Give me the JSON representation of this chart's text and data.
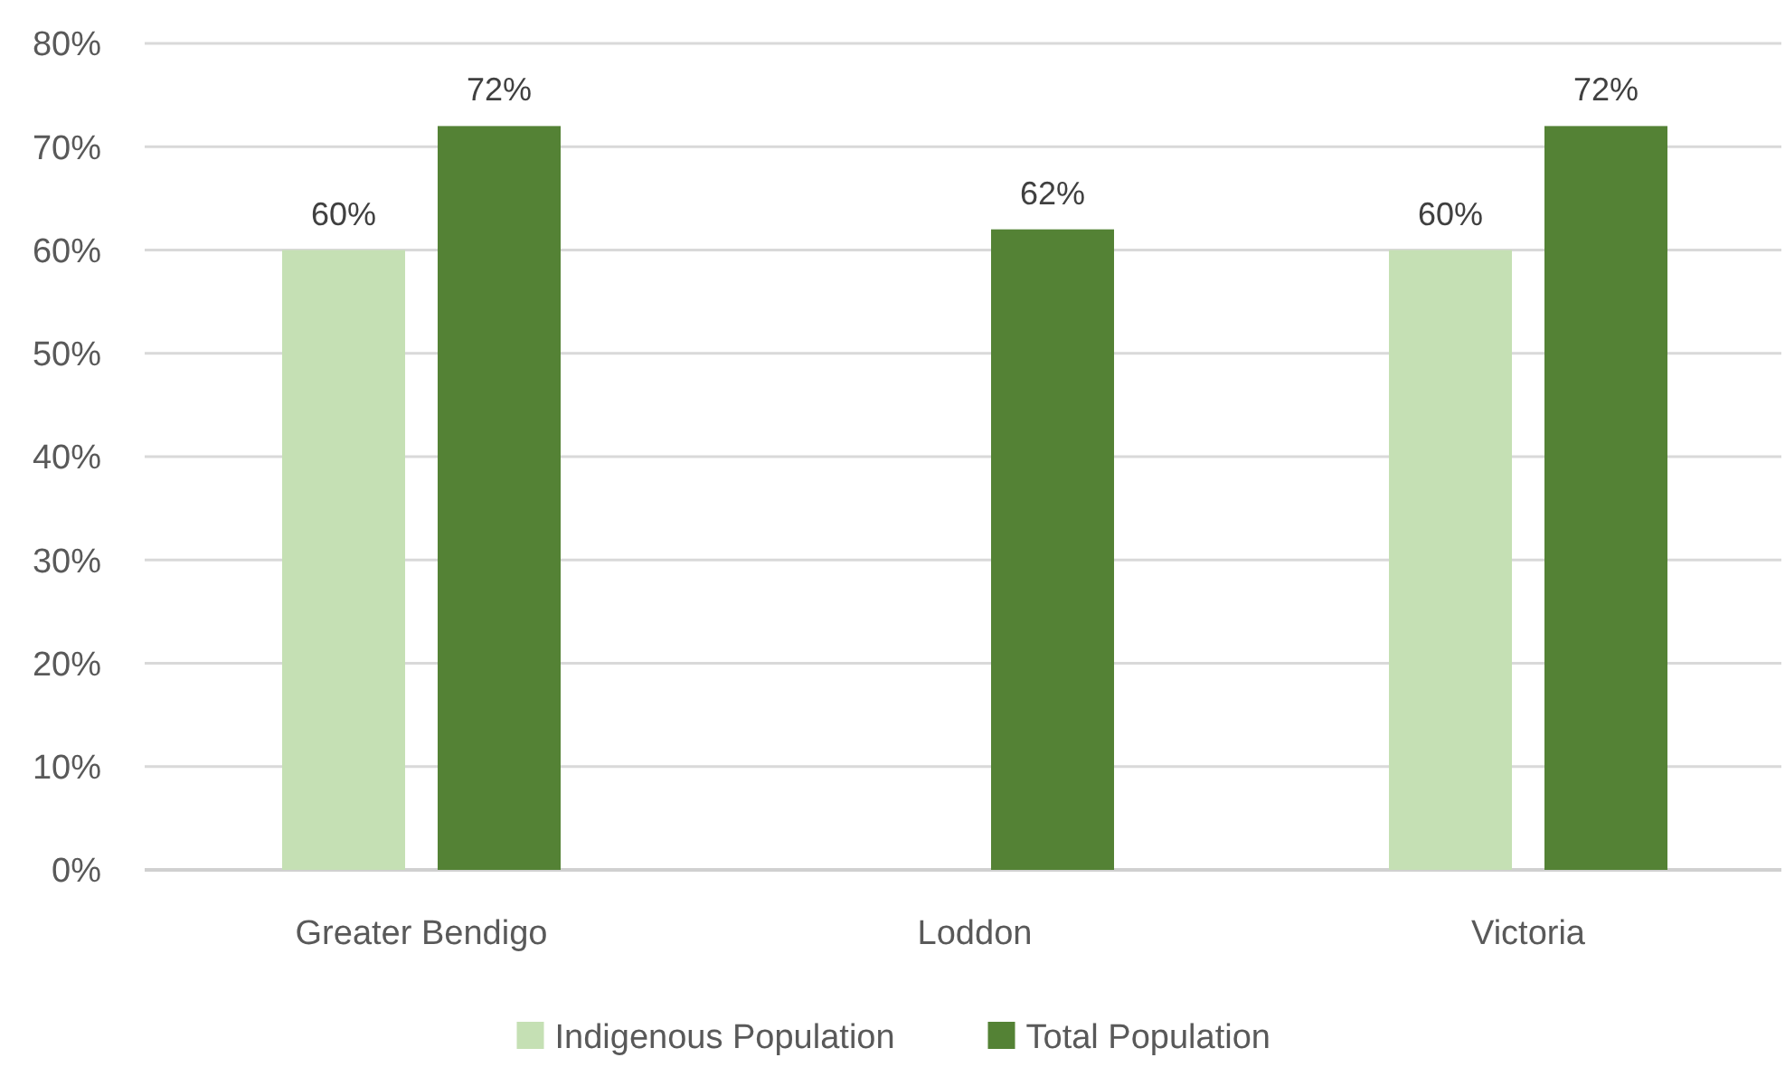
{
  "chart_data": {
    "type": "bar",
    "categories": [
      "Greater Bendigo",
      "Loddon",
      "Victoria"
    ],
    "series": [
      {
        "name": "Indigenous Population",
        "color": "#c5e0b4",
        "values": [
          60,
          null,
          60
        ],
        "value_labels": [
          "60%",
          null,
          "60%"
        ]
      },
      {
        "name": "Total Population",
        "color": "#548235",
        "values": [
          72,
          62,
          72
        ],
        "value_labels": [
          "72%",
          "62%",
          "72%"
        ]
      }
    ],
    "ylim": [
      0,
      80
    ],
    "yticks": [
      {
        "value": 0,
        "label": "0%"
      },
      {
        "value": 10,
        "label": "10%"
      },
      {
        "value": 20,
        "label": "20%"
      },
      {
        "value": 30,
        "label": "30%"
      },
      {
        "value": 40,
        "label": "40%"
      },
      {
        "value": 50,
        "label": "50%"
      },
      {
        "value": 60,
        "label": "60%"
      },
      {
        "value": 70,
        "label": "70%"
      },
      {
        "value": 80,
        "label": "80%"
      }
    ],
    "grid": "y",
    "legend": "bottom"
  }
}
